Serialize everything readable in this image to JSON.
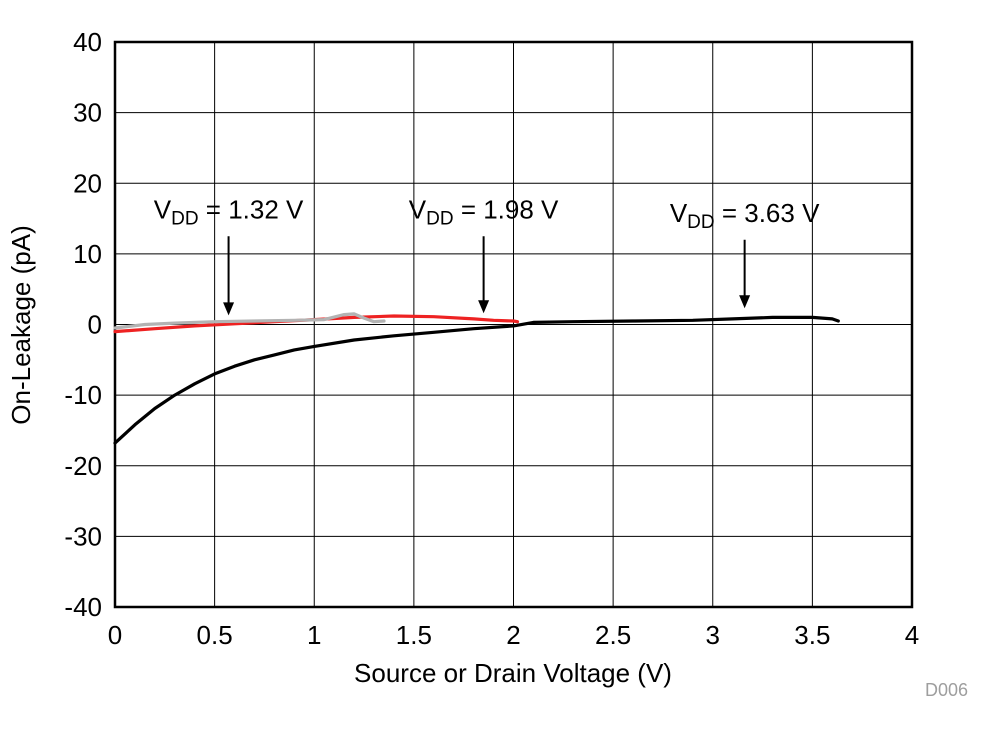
{
  "chart_data": {
    "type": "line",
    "title": "",
    "xlabel": "Source or Drain Voltage (V)",
    "ylabel": "On-Leakage (pA)",
    "figure_id": "D006",
    "xlim": [
      0,
      4
    ],
    "ylim": [
      -40,
      40
    ],
    "x_ticks": [
      0,
      0.5,
      1,
      1.5,
      2,
      2.5,
      3,
      3.5,
      4
    ],
    "x_tick_labels": [
      "0",
      "0.5",
      "1",
      "1.5",
      "2",
      "2.5",
      "3",
      "3.5",
      "4"
    ],
    "y_ticks": [
      -40,
      -30,
      -20,
      -10,
      0,
      10,
      20,
      30,
      40
    ],
    "y_tick_labels": [
      "-40",
      "-30",
      "-20",
      "-10",
      "0",
      "10",
      "20",
      "30",
      "40"
    ],
    "grid": true,
    "legend_position": "none",
    "series": [
      {
        "name": "VDD = 3.63 V",
        "color": "#000000",
        "points": [
          [
            0,
            -16.8
          ],
          [
            0.1,
            -14.2
          ],
          [
            0.2,
            -11.9
          ],
          [
            0.3,
            -10.0
          ],
          [
            0.4,
            -8.4
          ],
          [
            0.5,
            -7.0
          ],
          [
            0.6,
            -5.9
          ],
          [
            0.7,
            -5.0
          ],
          [
            0.8,
            -4.3
          ],
          [
            0.9,
            -3.6
          ],
          [
            1.0,
            -3.1
          ],
          [
            1.2,
            -2.2
          ],
          [
            1.4,
            -1.6
          ],
          [
            1.6,
            -1.1
          ],
          [
            1.8,
            -0.6
          ],
          [
            2.0,
            -0.2
          ],
          [
            2.1,
            0.3
          ],
          [
            2.3,
            0.4
          ],
          [
            2.6,
            0.5
          ],
          [
            2.9,
            0.6
          ],
          [
            3.1,
            0.8
          ],
          [
            3.3,
            1.0
          ],
          [
            3.5,
            1.0
          ],
          [
            3.6,
            0.8
          ],
          [
            3.63,
            0.5
          ]
        ]
      },
      {
        "name": "VDD = 1.98 V",
        "color": "#ee2222",
        "points": [
          [
            0,
            -1.0
          ],
          [
            0.2,
            -0.6
          ],
          [
            0.4,
            -0.2
          ],
          [
            0.6,
            0.1
          ],
          [
            0.8,
            0.4
          ],
          [
            1.0,
            0.7
          ],
          [
            1.2,
            1.0
          ],
          [
            1.4,
            1.2
          ],
          [
            1.6,
            1.1
          ],
          [
            1.8,
            0.8
          ],
          [
            1.9,
            0.6
          ],
          [
            2.0,
            0.5
          ],
          [
            2.02,
            0.4
          ]
        ]
      },
      {
        "name": "VDD = 1.32 V",
        "color": "#b3b3b3",
        "points": [
          [
            0,
            -0.5
          ],
          [
            0.15,
            0.0
          ],
          [
            0.3,
            0.2
          ],
          [
            0.5,
            0.4
          ],
          [
            0.7,
            0.5
          ],
          [
            0.9,
            0.6
          ],
          [
            1.05,
            0.7
          ],
          [
            1.15,
            1.4
          ],
          [
            1.2,
            1.5
          ],
          [
            1.25,
            0.9
          ],
          [
            1.3,
            0.4
          ],
          [
            1.35,
            0.5
          ]
        ]
      }
    ],
    "annotations": [
      {
        "sub_prefix": "V",
        "sub": "DD",
        "rest": " = 1.32 V",
        "x": 0.57,
        "label_y": 15,
        "arrow_from_y": 12.5,
        "arrow_to_y": 1.3
      },
      {
        "sub_prefix": "V",
        "sub": "DD",
        "rest": " = 1.98 V",
        "x": 1.85,
        "label_y": 15,
        "arrow_from_y": 12.5,
        "arrow_to_y": 1.6
      },
      {
        "sub_prefix": "V",
        "sub": "DD",
        "rest": " = 3.63 V",
        "x": 3.16,
        "label_y": 14.5,
        "arrow_from_y": 12,
        "arrow_to_y": 2.3
      }
    ],
    "colors": {
      "background": "#ffffff",
      "axis": "#000000",
      "grid": "#000000",
      "figure_id_text": "#9e9e9e"
    }
  }
}
